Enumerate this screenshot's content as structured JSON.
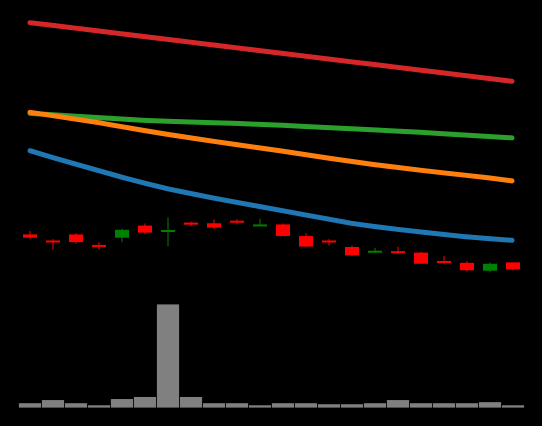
{
  "chart_data": {
    "type": "candlestick",
    "background": "#000000",
    "grid": false,
    "legend": "none",
    "ylim": [
      0,
      100
    ],
    "volume_ylim": [
      0,
      100
    ],
    "moving_averages": [
      {
        "color": "#d62728",
        "values": [
          98.0,
          96.8,
          95.6,
          94.4,
          93.2,
          92.0,
          90.8,
          89.6,
          88.4,
          87.2,
          86.0,
          84.8,
          83.6,
          82.4,
          81.2,
          80.0,
          78.8,
          77.6,
          76.4,
          75.2,
          74.0,
          72.8
        ]
      },
      {
        "color": "#2ca02c",
        "values": [
          59.0,
          58.4,
          57.8,
          57.2,
          56.6,
          56.0,
          55.6,
          55.3,
          55.0,
          54.7,
          54.3,
          53.9,
          53.4,
          52.9,
          52.4,
          51.9,
          51.4,
          50.9,
          50.3,
          49.7,
          49.1,
          48.5
        ]
      },
      {
        "color": "#ff7f0e",
        "values": [
          59.5,
          58.0,
          56.5,
          55.0,
          53.3,
          51.6,
          50.0,
          48.5,
          47.0,
          45.6,
          44.2,
          42.8,
          41.3,
          39.8,
          38.4,
          37.0,
          35.8,
          34.6,
          33.5,
          32.4,
          31.3,
          30.0
        ]
      },
      {
        "color": "#1f77b4",
        "values": [
          43.0,
          40.0,
          37.2,
          34.4,
          31.6,
          29.0,
          26.6,
          24.6,
          22.6,
          20.8,
          19.0,
          17.2,
          15.4,
          13.6,
          11.8,
          10.4,
          9.2,
          8.1,
          7.0,
          6.0,
          5.2,
          4.5
        ]
      }
    ],
    "candles": [
      {
        "open": 7.0,
        "close": 5.6,
        "high": 8.4,
        "low": 5.0
      },
      {
        "open": 4.4,
        "close": 3.7,
        "high": 5.0,
        "low": 0.4
      },
      {
        "open": 7.0,
        "close": 3.7,
        "high": 7.5,
        "low": 3.0
      },
      {
        "open": 2.5,
        "close": 2.3,
        "high": 3.7,
        "low": 0.4
      },
      {
        "open": 5.6,
        "close": 9.0,
        "high": 9.5,
        "low": 3.7
      },
      {
        "open": 10.8,
        "close": 7.8,
        "high": 11.7,
        "low": 7.0
      },
      {
        "open": 8.4,
        "close": 8.9,
        "high": 14.3,
        "low": 2.0
      },
      {
        "open": 12.1,
        "close": 11.2,
        "high": 12.6,
        "low": 10.5
      },
      {
        "open": 11.8,
        "close": 9.9,
        "high": 13.5,
        "low": 9.3
      },
      {
        "open": 12.9,
        "close": 12.1,
        "high": 13.6,
        "low": 11.3
      },
      {
        "open": 11.3,
        "close": 11.3,
        "high": 13.8,
        "low": 10.5
      },
      {
        "open": 11.3,
        "close": 6.3,
        "high": 11.7,
        "low": 6.3
      },
      {
        "open": 6.3,
        "close": 1.8,
        "high": 7.5,
        "low": 1.6
      },
      {
        "open": 4.4,
        "close": 3.7,
        "high": 5.0,
        "low": 2.2
      },
      {
        "open": 1.6,
        "close": -2.0,
        "high": 2.2,
        "low": -2.2
      },
      {
        "open": -0.8,
        "close": 0.0,
        "high": 1.2,
        "low": -1.0
      },
      {
        "open": -0.2,
        "close": -0.8,
        "high": 1.7,
        "low": -1.4
      },
      {
        "open": -0.8,
        "close": -5.6,
        "high": -0.4,
        "low": -5.6
      },
      {
        "open": -4.4,
        "close": -5.0,
        "high": -2.2,
        "low": -5.6
      },
      {
        "open": -5.2,
        "close": -8.4,
        "high": -4.4,
        "low": -8.9
      },
      {
        "open": -8.6,
        "close": -5.6,
        "high": -5.0,
        "low": -9.3
      },
      {
        "open": -5.0,
        "close": -8.0,
        "high": -5.0,
        "low": -8.4
      }
    ],
    "volume": [
      5,
      8,
      5,
      3,
      9,
      11,
      100,
      11,
      5,
      5,
      3,
      5,
      5,
      4,
      4,
      5,
      8,
      5,
      5,
      5,
      6,
      3
    ],
    "colors": {
      "up": "#008000",
      "down": "#ff0000",
      "volume": "#808080"
    }
  }
}
